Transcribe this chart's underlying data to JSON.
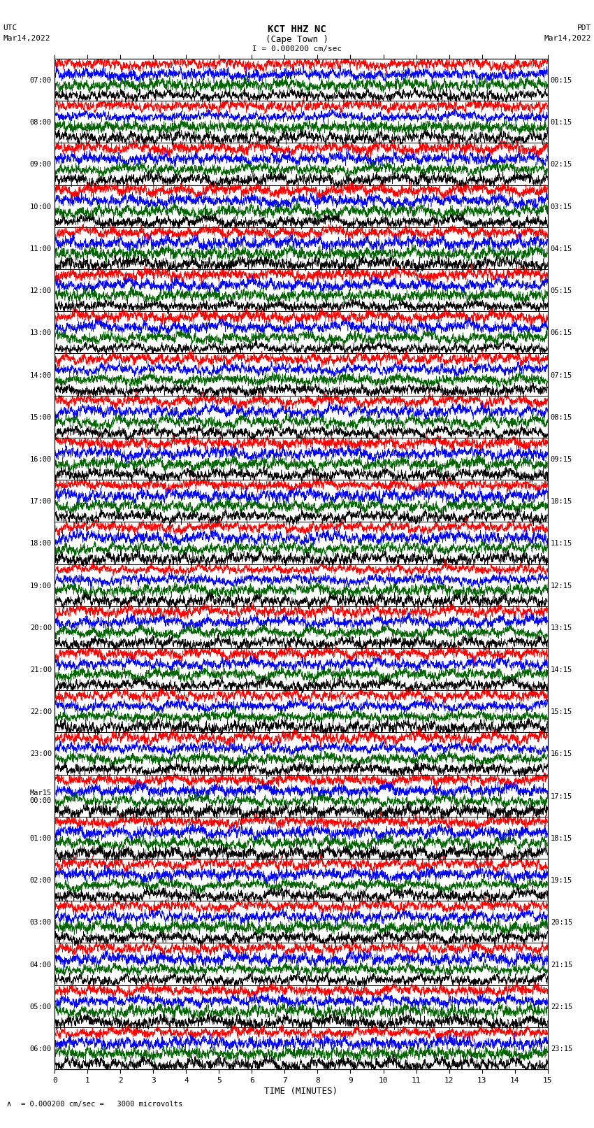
{
  "title_line1": "KCT HHZ NC",
  "title_line2": "(Cape Town )",
  "title_scale": "I = 0.000200 cm/sec",
  "left_header_line1": "UTC",
  "left_header_line2": "Mar14,2022",
  "right_header_line1": "PDT",
  "right_header_line2": "Mar14,2022",
  "footer_label": "TIME (MINUTES)",
  "scale_label": "= 0.000200 cm/sec =   3000 microvolts",
  "utc_times": [
    "07:00",
    "08:00",
    "09:00",
    "10:00",
    "11:00",
    "12:00",
    "13:00",
    "14:00",
    "15:00",
    "16:00",
    "17:00",
    "18:00",
    "19:00",
    "20:00",
    "21:00",
    "22:00",
    "23:00",
    "Mar15\n00:00",
    "01:00",
    "02:00",
    "03:00",
    "04:00",
    "05:00",
    "06:00"
  ],
  "pdt_times": [
    "00:15",
    "01:15",
    "02:15",
    "03:15",
    "04:15",
    "05:15",
    "06:15",
    "07:15",
    "08:15",
    "09:15",
    "10:15",
    "11:15",
    "12:15",
    "13:15",
    "14:15",
    "15:15",
    "16:15",
    "17:15",
    "18:15",
    "19:15",
    "20:15",
    "21:15",
    "22:15",
    "23:15"
  ],
  "n_traces": 24,
  "n_samples": 3600,
  "bg_color": "#ffffff",
  "trace_colors": [
    "#ff0000",
    "#0000ff",
    "#006400",
    "#000000"
  ],
  "minutes_ticks": [
    0,
    1,
    2,
    3,
    4,
    5,
    6,
    7,
    8,
    9,
    10,
    11,
    12,
    13,
    14,
    15
  ],
  "amplitude_scale": 3000,
  "band_amplitude": 0.24,
  "green_color": "#006400",
  "red_color": "#ff0000",
  "blue_color": "#0000ff",
  "black_color": "#000000"
}
